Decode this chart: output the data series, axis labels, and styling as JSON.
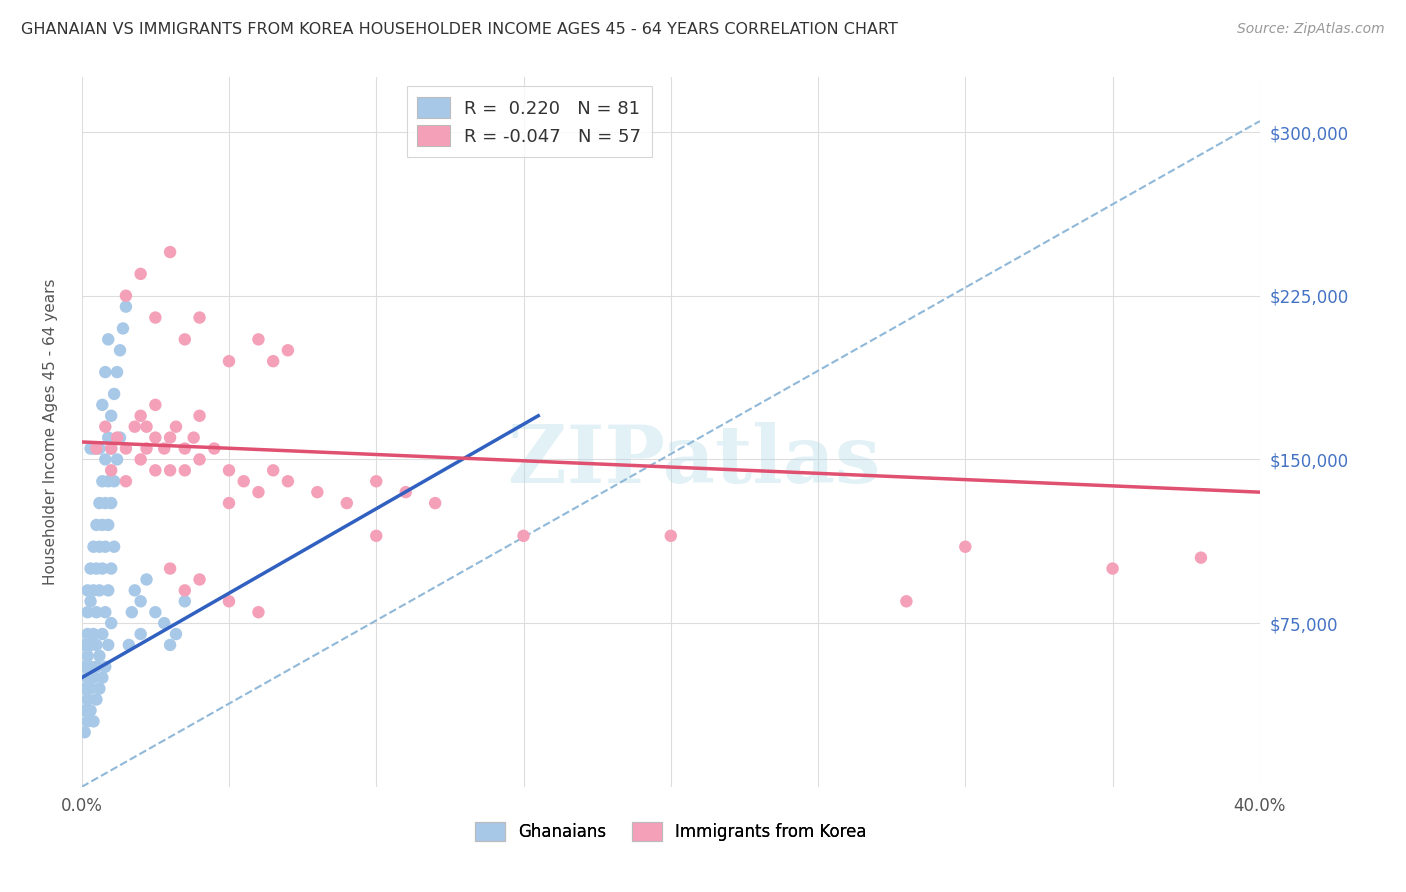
{
  "title": "GHANAIAN VS IMMIGRANTS FROM KOREA HOUSEHOLDER INCOME AGES 45 - 64 YEARS CORRELATION CHART",
  "source": "Source: ZipAtlas.com",
  "ylabel": "Householder Income Ages 45 - 64 years",
  "xlim": [
    0.0,
    0.4
  ],
  "ylim": [
    0,
    325000
  ],
  "ytick_positions": [
    75000,
    150000,
    225000,
    300000
  ],
  "ytick_labels": [
    "$75,000",
    "$150,000",
    "$225,000",
    "$300,000"
  ],
  "xtick_positions": [
    0.0,
    0.05,
    0.1,
    0.15,
    0.2,
    0.25,
    0.3,
    0.35,
    0.4
  ],
  "xtick_labels": [
    "0.0%",
    "",
    "",
    "",
    "",
    "",
    "",
    "",
    "40.0%"
  ],
  "color_ghana": "#A8C8E8",
  "color_korea": "#F4A0B8",
  "color_ghana_line": "#3060C0",
  "color_korea_line": "#E05070",
  "color_dashed": "#90B8D8",
  "color_axis_labels": "#4472C4",
  "ghana_scatter": [
    [
      0.001,
      55000
    ],
    [
      0.001,
      45000
    ],
    [
      0.001,
      35000
    ],
    [
      0.001,
      25000
    ],
    [
      0.001,
      65000
    ],
    [
      0.002,
      80000
    ],
    [
      0.002,
      50000
    ],
    [
      0.002,
      40000
    ],
    [
      0.002,
      30000
    ],
    [
      0.002,
      60000
    ],
    [
      0.002,
      90000
    ],
    [
      0.002,
      70000
    ],
    [
      0.003,
      100000
    ],
    [
      0.003,
      55000
    ],
    [
      0.003,
      45000
    ],
    [
      0.003,
      35000
    ],
    [
      0.003,
      65000
    ],
    [
      0.003,
      85000
    ],
    [
      0.004,
      110000
    ],
    [
      0.004,
      70000
    ],
    [
      0.004,
      50000
    ],
    [
      0.004,
      90000
    ],
    [
      0.004,
      30000
    ],
    [
      0.005,
      120000
    ],
    [
      0.005,
      80000
    ],
    [
      0.005,
      55000
    ],
    [
      0.005,
      40000
    ],
    [
      0.005,
      100000
    ],
    [
      0.005,
      65000
    ],
    [
      0.006,
      130000
    ],
    [
      0.006,
      90000
    ],
    [
      0.006,
      60000
    ],
    [
      0.006,
      45000
    ],
    [
      0.006,
      110000
    ],
    [
      0.007,
      140000
    ],
    [
      0.007,
      100000
    ],
    [
      0.007,
      70000
    ],
    [
      0.007,
      50000
    ],
    [
      0.007,
      120000
    ],
    [
      0.008,
      150000
    ],
    [
      0.008,
      110000
    ],
    [
      0.008,
      80000
    ],
    [
      0.008,
      55000
    ],
    [
      0.008,
      130000
    ],
    [
      0.009,
      160000
    ],
    [
      0.009,
      120000
    ],
    [
      0.009,
      90000
    ],
    [
      0.009,
      65000
    ],
    [
      0.009,
      140000
    ],
    [
      0.01,
      170000
    ],
    [
      0.01,
      130000
    ],
    [
      0.01,
      100000
    ],
    [
      0.01,
      75000
    ],
    [
      0.011,
      180000
    ],
    [
      0.011,
      140000
    ],
    [
      0.011,
      110000
    ],
    [
      0.012,
      190000
    ],
    [
      0.012,
      150000
    ],
    [
      0.013,
      200000
    ],
    [
      0.013,
      160000
    ],
    [
      0.014,
      210000
    ],
    [
      0.015,
      220000
    ],
    [
      0.016,
      65000
    ],
    [
      0.017,
      80000
    ],
    [
      0.018,
      90000
    ],
    [
      0.02,
      70000
    ],
    [
      0.02,
      85000
    ],
    [
      0.022,
      95000
    ],
    [
      0.025,
      80000
    ],
    [
      0.028,
      75000
    ],
    [
      0.03,
      65000
    ],
    [
      0.032,
      70000
    ],
    [
      0.035,
      85000
    ],
    [
      0.01,
      155000
    ],
    [
      0.008,
      190000
    ],
    [
      0.009,
      205000
    ],
    [
      0.007,
      175000
    ],
    [
      0.006,
      155000
    ],
    [
      0.005,
      155000
    ],
    [
      0.004,
      155000
    ],
    [
      0.003,
      155000
    ]
  ],
  "korea_scatter": [
    [
      0.005,
      155000
    ],
    [
      0.008,
      165000
    ],
    [
      0.01,
      155000
    ],
    [
      0.01,
      145000
    ],
    [
      0.012,
      160000
    ],
    [
      0.015,
      155000
    ],
    [
      0.015,
      140000
    ],
    [
      0.018,
      165000
    ],
    [
      0.02,
      150000
    ],
    [
      0.02,
      170000
    ],
    [
      0.022,
      155000
    ],
    [
      0.022,
      165000
    ],
    [
      0.025,
      145000
    ],
    [
      0.025,
      175000
    ],
    [
      0.025,
      160000
    ],
    [
      0.028,
      155000
    ],
    [
      0.03,
      160000
    ],
    [
      0.03,
      145000
    ],
    [
      0.032,
      165000
    ],
    [
      0.035,
      155000
    ],
    [
      0.035,
      145000
    ],
    [
      0.038,
      160000
    ],
    [
      0.04,
      150000
    ],
    [
      0.04,
      170000
    ],
    [
      0.045,
      155000
    ],
    [
      0.05,
      130000
    ],
    [
      0.05,
      145000
    ],
    [
      0.055,
      140000
    ],
    [
      0.06,
      135000
    ],
    [
      0.065,
      145000
    ],
    [
      0.07,
      140000
    ],
    [
      0.08,
      135000
    ],
    [
      0.09,
      130000
    ],
    [
      0.1,
      140000
    ],
    [
      0.11,
      135000
    ],
    [
      0.12,
      130000
    ],
    [
      0.015,
      225000
    ],
    [
      0.02,
      235000
    ],
    [
      0.025,
      215000
    ],
    [
      0.03,
      245000
    ],
    [
      0.035,
      205000
    ],
    [
      0.04,
      215000
    ],
    [
      0.05,
      195000
    ],
    [
      0.06,
      205000
    ],
    [
      0.065,
      195000
    ],
    [
      0.07,
      200000
    ],
    [
      0.03,
      100000
    ],
    [
      0.035,
      90000
    ],
    [
      0.04,
      95000
    ],
    [
      0.05,
      85000
    ],
    [
      0.06,
      80000
    ],
    [
      0.1,
      115000
    ],
    [
      0.15,
      115000
    ],
    [
      0.2,
      115000
    ],
    [
      0.3,
      110000
    ],
    [
      0.38,
      105000
    ],
    [
      0.35,
      100000
    ],
    [
      0.28,
      85000
    ]
  ],
  "ghana_trend_x": [
    0.0,
    0.155
  ],
  "ghana_trend_y": [
    50000,
    170000
  ],
  "korea_trend_x": [
    0.0,
    0.4
  ],
  "korea_trend_y": [
    158000,
    135000
  ],
  "dashed_trend_x": [
    0.0,
    0.4
  ],
  "dashed_trend_y": [
    0,
    305000
  ],
  "bottom_legend": [
    "Ghanaians",
    "Immigrants from Korea"
  ]
}
